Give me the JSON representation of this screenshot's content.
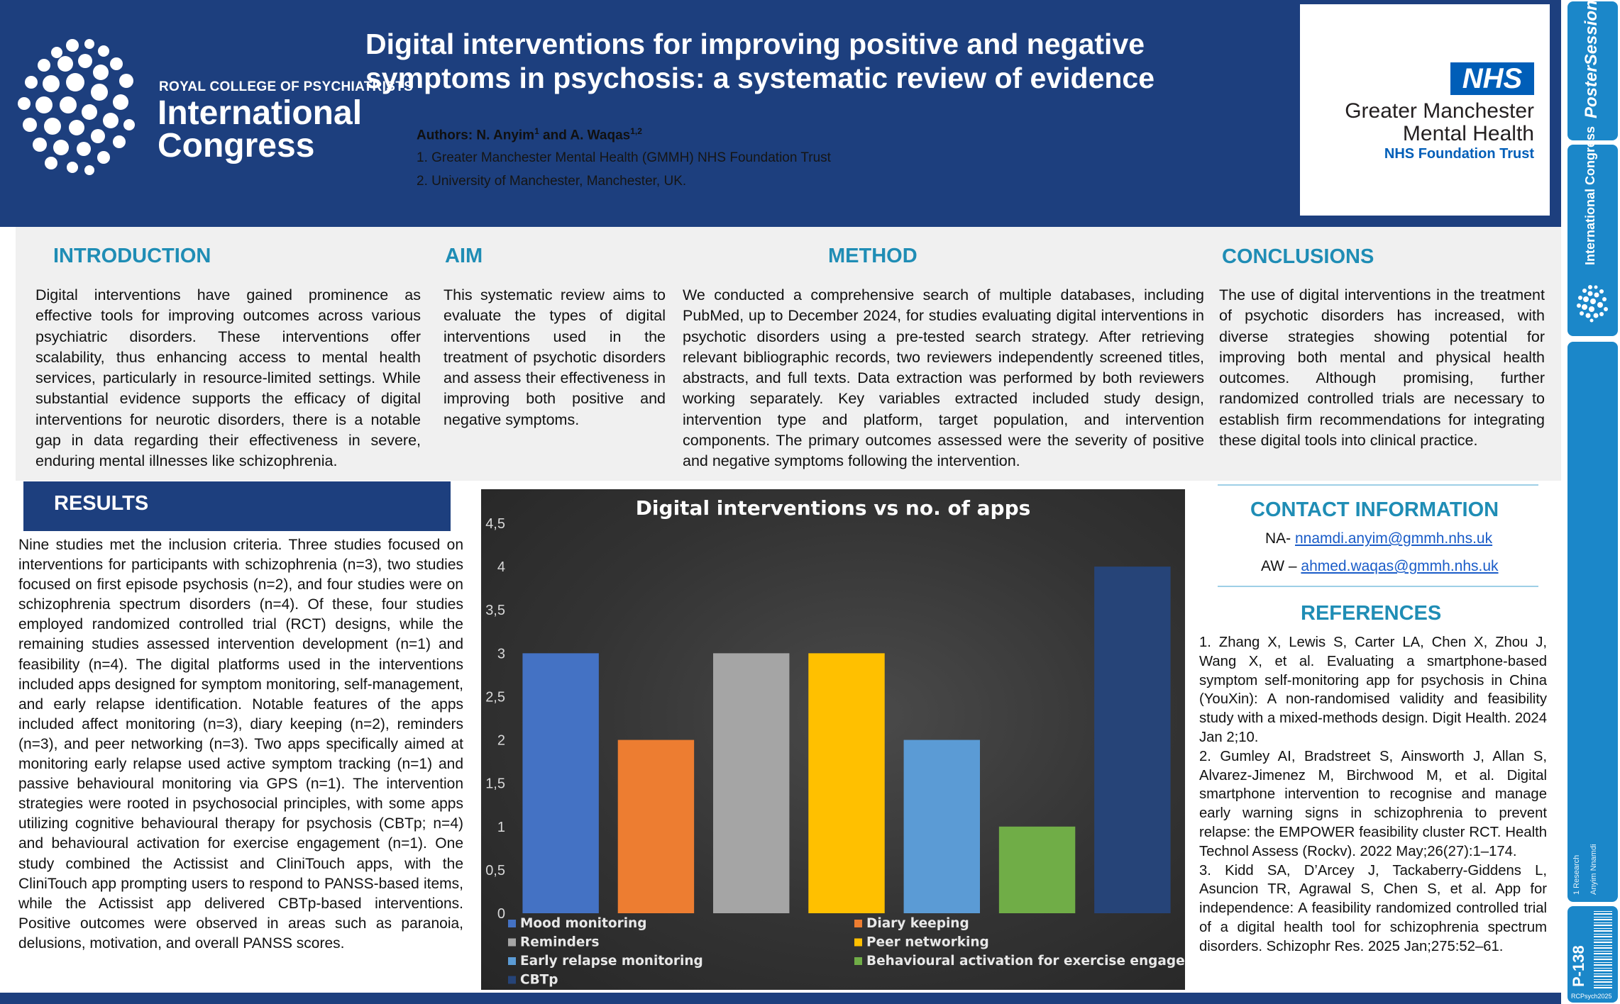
{
  "header": {
    "org_name": "ROYAL COLLEGE OF PSYCHIATRISTS",
    "congress_line1": "International",
    "congress_line2": "Congress",
    "title": "Digital interventions for improving positive and negative symptoms in psychosis: a systematic review of evidence",
    "authors_label": "Authors: N. Anyim",
    "authors_sup1": "1",
    "authors_mid": " and A. Waqas",
    "authors_sup2": "1,2",
    "affiliation_1": "1. Greater Manchester Mental Health (GMMH) NHS Foundation Trust",
    "affiliation_2": "2. University of Manchester, Manchester, UK."
  },
  "nhs": {
    "badge": "NHS",
    "org_line1": "Greater Manchester",
    "org_line2": "Mental Health",
    "trust": "NHS Foundation Trust"
  },
  "side": {
    "pso": "PosterSessionOnline",
    "ic": "International Congress",
    "research": "1 Research",
    "author": "Anyim Nnamdi",
    "poster_num": "P-138",
    "tag": "RCPsych2025"
  },
  "sections": {
    "introduction": {
      "heading": "INTRODUCTION",
      "body": "Digital interventions have gained prominence as effective tools for improving outcomes across various psychiatric disorders. These interventions offer scalability, thus enhancing access to mental health services, particularly in resource-limited settings. While substantial evidence supports the efficacy of digital interventions for neurotic disorders, there is a notable gap in data regarding their effectiveness in severe, enduring mental illnesses like schizophrenia."
    },
    "aim": {
      "heading": "AIM",
      "body": "This systematic review aims to evaluate the types of digital interventions used in the treatment of psychotic disorders and assess their effectiveness in improving both positive and negative symptoms."
    },
    "method": {
      "heading": "METHOD",
      "body": "We conducted a comprehensive search of multiple databases, including PubMed, up to December 2024, for studies evaluating digital interventions in psychotic disorders using a pre-tested search strategy. After retrieving relevant bibliographic records, two reviewers independently screened titles, abstracts, and full texts. Data extraction was performed by both reviewers working separately. Key variables extracted included study design, intervention type and platform, target population, and intervention components. The primary outcomes assessed were the severity of positive and negative symptoms following the intervention."
    },
    "conclusions": {
      "heading": "CONCLUSIONS",
      "body": "The use of digital interventions in the treatment of psychotic disorders has increased, with diverse strategies showing potential for improving both mental and physical health outcomes. Although promising, further randomized controlled trials are necessary to establish firm recommendations for integrating these digital tools into clinical practice."
    },
    "results": {
      "heading": "RESULTS",
      "body": "Nine studies met the inclusion criteria. Three studies focused on interventions for participants with schizophrenia (n=3), two studies focused on first episode psychosis (n=2), and four studies were on schizophrenia spectrum disorders (n=4). Of these, four studies employed randomized controlled trial (RCT) designs, while the remaining studies assessed intervention development (n=1) and feasibility (n=4). The digital platforms used in the interventions included apps designed for symptom monitoring, self-management, and early relapse identification. Notable features of the apps included affect monitoring (n=3), diary keeping (n=2), reminders (n=3), and peer networking (n=3). Two apps specifically aimed at monitoring early relapse used active symptom tracking (n=1) and passive behavioural monitoring via GPS (n=1). The intervention strategies were rooted in psychosocial principles, with some apps utilizing cognitive behavioural therapy for psychosis (CBTp; n=4) and behavioural activation for exercise engagement (n=1). One study combined the Actissist and CliniTouch apps, with the CliniTouch app prompting users to respond to PANSS-based items, while the Actissist app delivered CBTp-based interventions. Positive outcomes were observed in areas such as paranoia, delusions, motivation, and overall PANSS scores."
    },
    "contact": {
      "heading": "CONTACT INFORMATION",
      "na_label": "NA- ",
      "na_email": "nnamdi.anyim@gmmh.nhs.uk",
      "aw_label": "AW – ",
      "aw_email": "ahmed.waqas@gmmh.nhs.uk"
    },
    "references": {
      "heading": "REFERENCES",
      "items": [
        "1. Zhang X, Lewis S, Carter LA, Chen X, Zhou J, Wang X, et al. Evaluating a smartphone-based symptom self-monitoring app for psychosis in China (YouXin): A non-randomised validity and feasibility study with a mixed-methods design. Digit Health. 2024 Jan 2;10.",
        "2. Gumley AI, Bradstreet S, Ainsworth J, Allan S, Alvarez-Jimenez M, Birchwood M, et al. Digital smartphone intervention to recognise and manage early warning signs in schizophrenia to prevent relapse: the EMPOWER feasibility cluster RCT. Health Technol Assess (Rockv). 2022 May;26(27):1–174.",
        "3. Kidd SA, D’Arcey J, Tackaberry-Giddens L, Asuncion TR, Agrawal S, Chen S, et al. App for independence: A feasibility randomized controlled trial of a digital health tool for schizophrenia spectrum disorders. Schizophr Res. 2025 Jan;275:52–61."
      ]
    }
  },
  "chart_data": {
    "type": "bar",
    "title": "Digital interventions vs no. of apps",
    "categories": [
      "Mood monitoring",
      "Diary keeping",
      "Reminders",
      "Peer networking",
      "Early relapse monitoring",
      "Behavioural activation for exercise engagement",
      "CBTp"
    ],
    "values": [
      3,
      2,
      3,
      3,
      2,
      1,
      4
    ],
    "colors": [
      "#4472c4",
      "#ed7d31",
      "#a5a5a5",
      "#ffc000",
      "#5b9bd5",
      "#70ad47",
      "#264478"
    ],
    "ylim": [
      0,
      4.5
    ],
    "yticks": [
      "0",
      "0,5",
      "1",
      "1,5",
      "2",
      "2,5",
      "3",
      "3,5",
      "4",
      "4,5"
    ],
    "legend_position": "bottom",
    "grid": false
  }
}
